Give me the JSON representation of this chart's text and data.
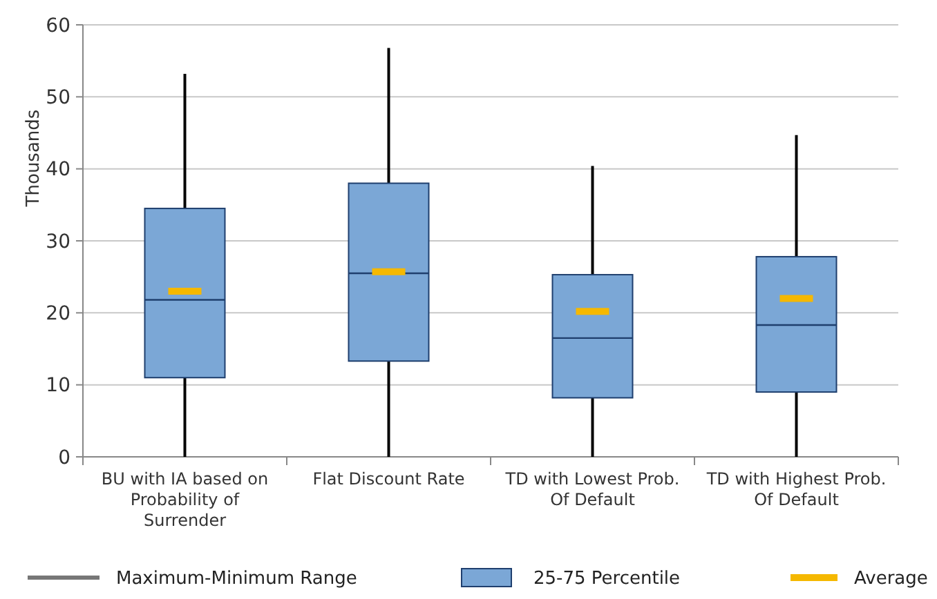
{
  "chart_data": {
    "type": "box",
    "ylabel": "Thousands",
    "categories": [
      "BU with IA based on Probability of Surrender",
      "Flat Discount Rate",
      "TD with Lowest Prob. Of Default",
      "TD with Highest Prob. Of Default"
    ],
    "ylim": [
      0,
      60
    ],
    "yticks": [
      0,
      10,
      20,
      30,
      40,
      50,
      60
    ],
    "grid": "y",
    "legend": "bottom",
    "series": [
      {
        "name": "25-75 Percentile",
        "color": "#7ba7d6",
        "boxes": [
          {
            "low": 0,
            "q1": 11,
            "median": 21.8,
            "q3": 34.5,
            "high": 53.2,
            "mean": 23
          },
          {
            "low": 0,
            "q1": 13.3,
            "median": 25.5,
            "q3": 38,
            "high": 56.8,
            "mean": 25.7
          },
          {
            "low": 0,
            "q1": 8.2,
            "median": 16.5,
            "q3": 25.3,
            "high": 40.4,
            "mean": 20.2
          },
          {
            "low": 0,
            "q1": 9,
            "median": 18.3,
            "q3": 27.8,
            "high": 44.7,
            "mean": 22
          }
        ]
      }
    ],
    "annotations": [
      "Maximum-Minimum Range",
      "Average"
    ]
  }
}
